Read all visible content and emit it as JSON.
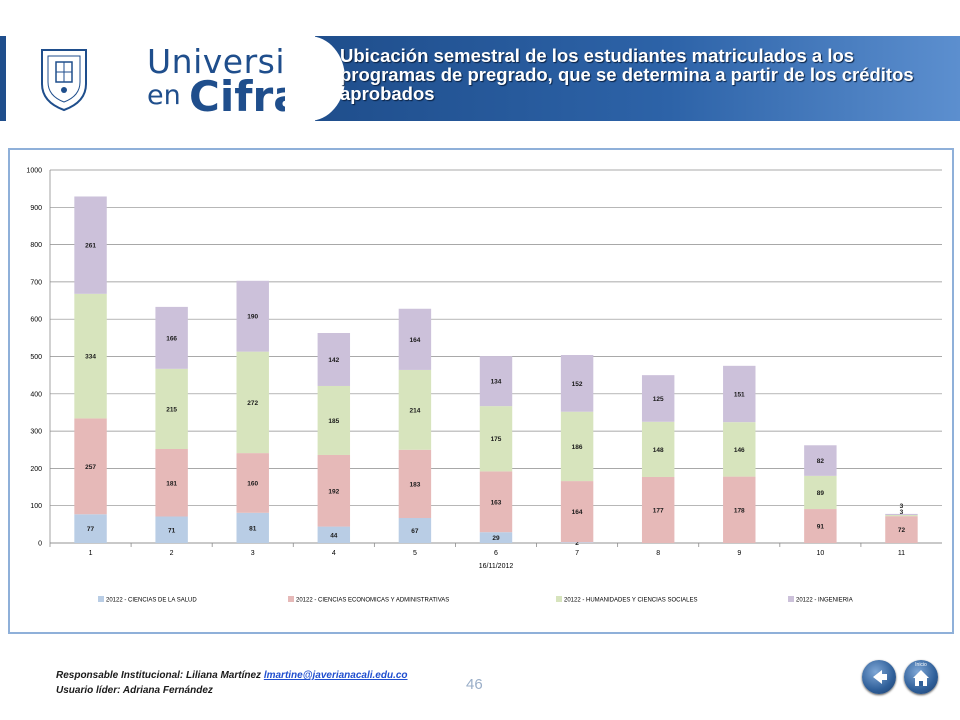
{
  "header": {
    "brand_line1": "Universidad",
    "brand_line2a": "en",
    "brand_line2b": "Cifras",
    "title": "Ubicación semestral de los estudiantes matriculados a los programas de pregrado, que se determina a partir de los créditos aprobados",
    "colors": {
      "primary": "#1f4e8c",
      "accent": "#5c8fcf"
    }
  },
  "chart_data": {
    "type": "bar",
    "stacked": true,
    "xlabel": "16/11/2012",
    "ylim": [
      0,
      1000
    ],
    "yticks": [
      0,
      100,
      200,
      300,
      400,
      500,
      600,
      700,
      800,
      900,
      1000
    ],
    "categories": [
      "1",
      "2",
      "3",
      "4",
      "5",
      "6",
      "7",
      "8",
      "9",
      "10",
      "11"
    ],
    "legend_position": "bottom",
    "grid": true,
    "series": [
      {
        "name": "20122 - CIENCIAS DE LA SALUD",
        "color": "#b9cde5",
        "values": [
          77,
          71,
          81,
          44,
          67,
          29,
          2,
          0,
          0,
          0,
          0
        ],
        "labels": [
          "77",
          "71",
          "81",
          "44",
          "67",
          "29",
          "2",
          "",
          "",
          "",
          ""
        ]
      },
      {
        "name": "20122 - CIENCIAS ECONOMICAS Y ADMINISTRATIVAS",
        "color": "#e6b9b8",
        "values": [
          257,
          181,
          160,
          192,
          183,
          163,
          164,
          177,
          178,
          91,
          72
        ],
        "labels": [
          "257",
          "181",
          "160",
          "192",
          "183",
          "163",
          "164",
          "177",
          "178",
          "91",
          "72"
        ]
      },
      {
        "name": "20122 - HUMANIDADES Y CIENCIAS SOCIALES",
        "color": "#d7e4bd",
        "values": [
          334,
          215,
          272,
          185,
          214,
          175,
          186,
          148,
          146,
          89,
          3
        ],
        "labels": [
          "334",
          "215",
          "272",
          "185",
          "214",
          "175",
          "186",
          "148",
          "146",
          "89",
          "3"
        ]
      },
      {
        "name": "20122 - INGENIERIA",
        "color": "#ccc1da",
        "values": [
          261,
          166,
          190,
          142,
          164,
          134,
          152,
          125,
          151,
          82,
          3
        ],
        "labels": [
          "261",
          "166",
          "190",
          "142",
          "164",
          "134",
          "152",
          "125",
          "151",
          "82",
          "3"
        ]
      }
    ]
  },
  "footer": {
    "responsible_label": "Responsable Institucional: Liliana Martínez",
    "email": "lmartine@javerianacali.edu.co",
    "user_leader": "Usuario líder: Adriana Fernández",
    "page_number": "46",
    "back_icon": "back-arrow-icon",
    "home_icon": "home-icon",
    "home_caption": "Inicio"
  }
}
